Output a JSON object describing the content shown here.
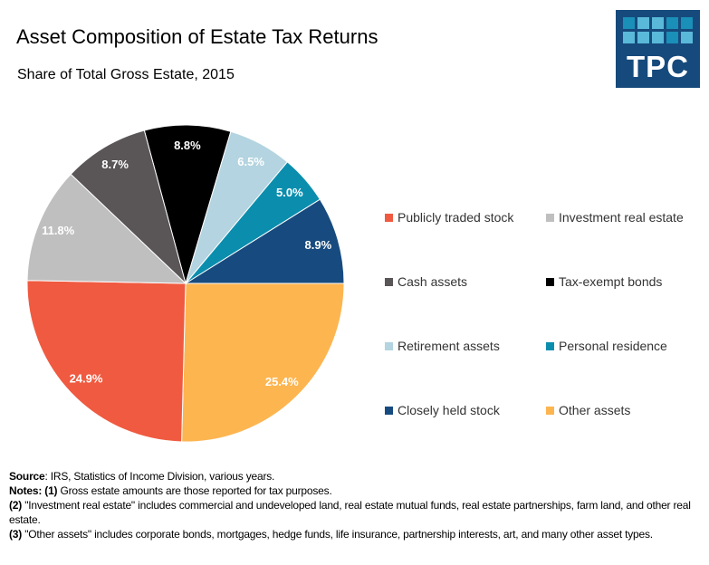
{
  "header": {
    "title": "Asset Composition of Estate Tax Returns",
    "subtitle": "Share of Total Gross Estate, 2015",
    "logo_text": "TPC"
  },
  "chart_data": {
    "type": "pie",
    "title": "Asset Composition of Estate Tax Returns",
    "subtitle": "Share of Total Gross Estate, 2015",
    "legend_placement": "right",
    "slices": [
      {
        "name": "Tax-exempt bonds",
        "value": 8.8,
        "label": "8.8%",
        "color": "#000000",
        "label_color": "#ffffff"
      },
      {
        "name": "Retirement assets",
        "value": 6.5,
        "label": "6.5%",
        "color": "#b3d4e0",
        "label_color": "#ffffff"
      },
      {
        "name": "Personal residence",
        "value": 5.0,
        "label": "5.0%",
        "color": "#0b8eae",
        "label_color": "#ffffff"
      },
      {
        "name": "Closely held stock",
        "value": 8.9,
        "label": "8.9%",
        "color": "#174b7f",
        "label_color": "#ffffff"
      },
      {
        "name": "Other assets",
        "value": 25.4,
        "label": "25.4%",
        "color": "#fdb550",
        "label_color": "#ffffff"
      },
      {
        "name": "Publicly traded stock",
        "value": 24.9,
        "label": "24.9%",
        "color": "#f05a40",
        "label_color": "#ffffff"
      },
      {
        "name": "Investment real estate",
        "value": 11.8,
        "label": "11.8%",
        "color": "#bfbfbf",
        "label_color": "#ffffff"
      },
      {
        "name": "Cash assets",
        "value": 8.7,
        "label": "8.7%",
        "color": "#5a5556",
        "label_color": "#ffffff"
      }
    ],
    "legend_order": [
      "Publicly traded stock",
      "Investment real estate",
      "Cash assets",
      "Tax-exempt bonds",
      "Retirement assets",
      "Personal residence",
      "Closely held stock",
      "Other assets"
    ]
  },
  "notes": {
    "source_label": "Source",
    "source_text": ": IRS, Statistics of Income Division, various years.",
    "notes_label": "Notes: (1)",
    "note1": " Gross estate amounts are those reported for tax purposes.",
    "note2_label": "(2)",
    "note2": " \"Investment real estate\" includes commercial and undeveloped land, real estate mutual funds, real estate partnerships, farm land, and other real estate.",
    "note3_label": "(3)",
    "note3": " \"Other assets\" includes corporate bonds, mortgages, hedge funds, life insurance, partnership interests, art, and many other asset types."
  }
}
